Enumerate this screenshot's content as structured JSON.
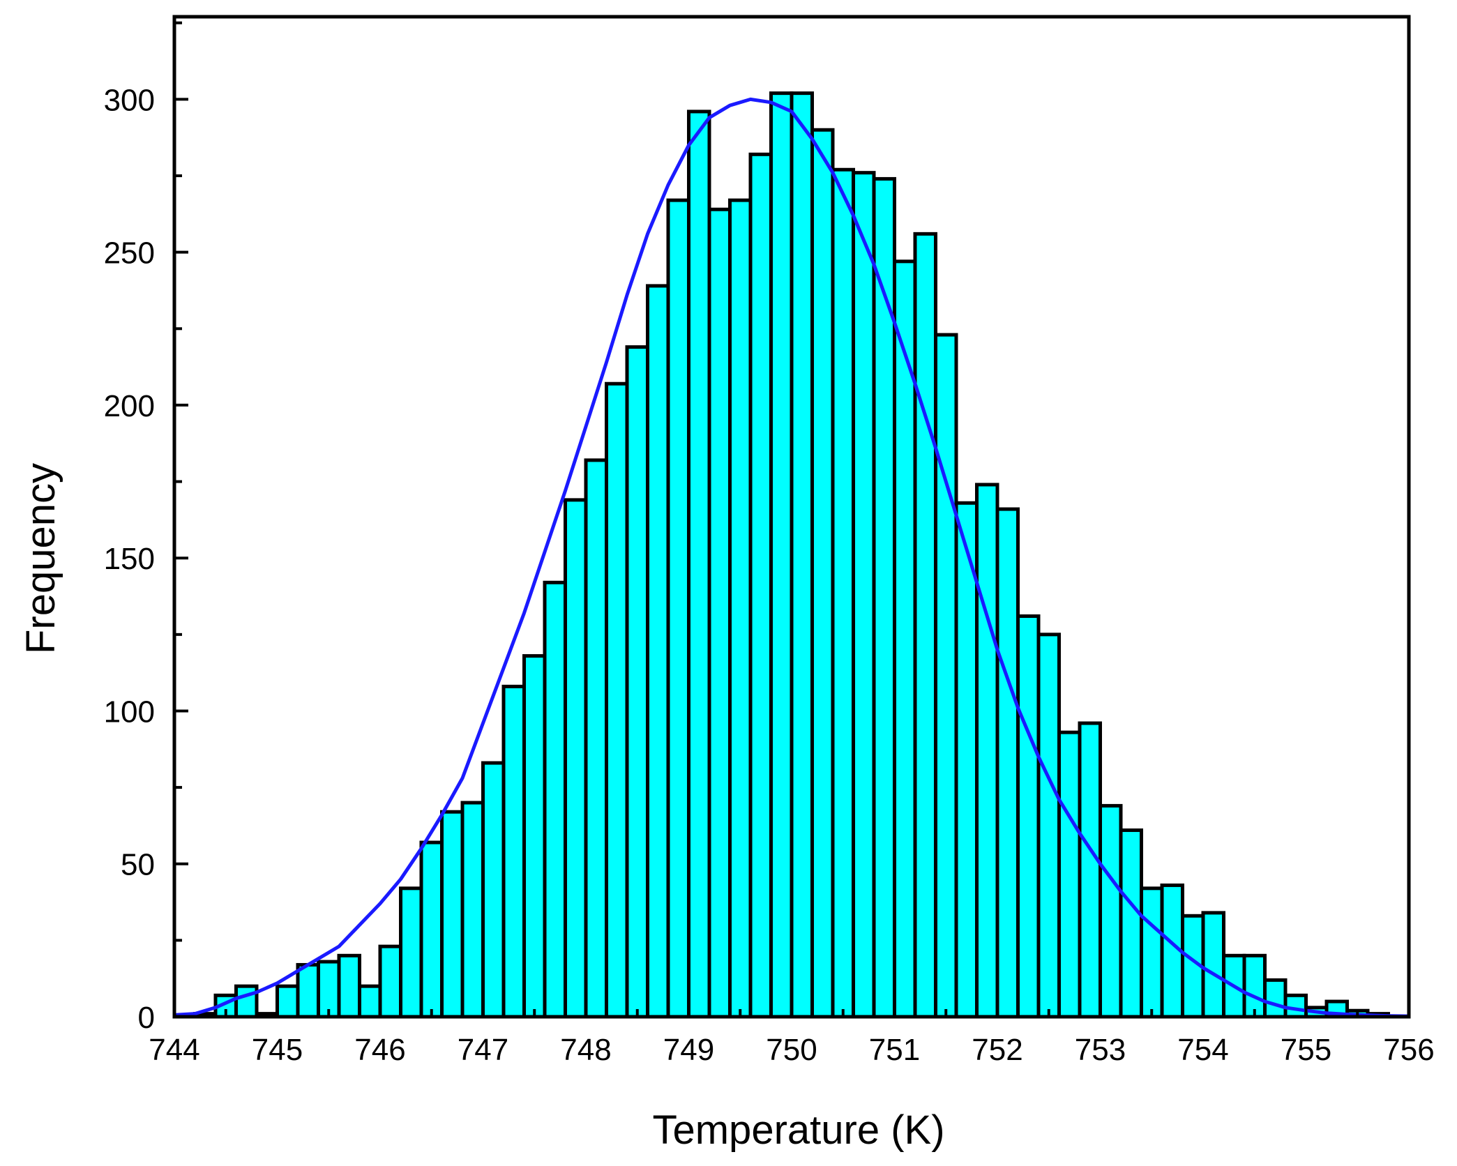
{
  "chart_data": {
    "type": "bar",
    "xlabel": "Temperature (K)",
    "ylabel": "Frequency",
    "xlim": [
      744,
      756
    ],
    "ylim": [
      0,
      327
    ],
    "x_ticks": [
      "744",
      "745",
      "746",
      "747",
      "748",
      "749",
      "750",
      "751",
      "752",
      "753",
      "754",
      "755",
      "756"
    ],
    "y_ticks": [
      "0",
      "50",
      "100",
      "150",
      "200",
      "250",
      "300"
    ],
    "grid": false,
    "bin_width": 0.2,
    "bin_starts": [
      744.2,
      744.4,
      744.6,
      744.8,
      745.0,
      745.2,
      745.4,
      745.6,
      745.8,
      746.0,
      746.2,
      746.4,
      746.6,
      746.8,
      747.0,
      747.2,
      747.4,
      747.6,
      747.8,
      748.0,
      748.2,
      748.4,
      748.6,
      748.8,
      749.0,
      749.2,
      749.4,
      749.6,
      749.8,
      750.0,
      750.2,
      750.4,
      750.6,
      750.8,
      751.0,
      751.2,
      751.4,
      751.6,
      751.8,
      752.0,
      752.2,
      752.4,
      752.6,
      752.8,
      753.0,
      753.2,
      753.4,
      753.6,
      753.8,
      754.0,
      754.2,
      754.4,
      754.6,
      754.8,
      755.0,
      755.2,
      755.4,
      755.6
    ],
    "values": [
      1,
      7,
      10,
      1,
      10,
      17,
      18,
      20,
      10,
      23,
      42,
      57,
      67,
      70,
      83,
      108,
      118,
      142,
      169,
      182,
      207,
      219,
      239,
      267,
      296,
      264,
      267,
      282,
      302,
      302,
      290,
      277,
      276,
      274,
      247,
      256,
      223,
      168,
      174,
      166,
      131,
      125,
      93,
      96,
      69,
      61,
      42,
      43,
      33,
      34,
      20,
      20,
      12,
      7,
      3,
      5,
      2,
      1
    ],
    "fit_curve": {
      "x": [
        744.0,
        744.2,
        744.4,
        744.6,
        744.8,
        745.0,
        745.2,
        745.4,
        745.6,
        745.8,
        746.0,
        746.2,
        746.4,
        746.6,
        746.8,
        747.0,
        747.2,
        747.4,
        747.6,
        747.8,
        748.0,
        748.2,
        748.4,
        748.6,
        748.8,
        749.0,
        749.2,
        749.4,
        749.6,
        749.8,
        750.0,
        750.2,
        750.4,
        750.6,
        750.8,
        751.0,
        751.2,
        751.4,
        751.6,
        751.8,
        752.0,
        752.2,
        752.4,
        752.6,
        752.8,
        753.0,
        753.2,
        753.4,
        753.6,
        753.8,
        754.0,
        754.2,
        754.4,
        754.6,
        754.8,
        755.0,
        755.2,
        755.4,
        755.6,
        755.8,
        756.0
      ],
      "y": [
        0.6,
        1.0,
        3.0,
        6.0,
        8.0,
        11,
        15,
        19,
        23,
        30,
        37,
        45,
        55,
        66,
        78,
        96,
        114,
        132,
        152,
        172,
        193,
        214,
        236,
        256,
        272,
        285,
        294,
        298,
        300,
        299,
        296,
        287,
        276,
        262,
        246,
        227,
        207,
        186,
        164,
        142,
        120,
        101,
        85,
        71,
        60,
        50,
        41,
        33,
        27,
        21,
        16,
        12,
        8,
        5,
        3,
        2,
        1.2,
        0.8,
        0.5,
        0.3,
        0.2
      ]
    },
    "colors": {
      "bar_fill": "#00ffff",
      "bar_edge": "#000000",
      "curve": "#1a1aff",
      "axis": "#000000"
    }
  }
}
